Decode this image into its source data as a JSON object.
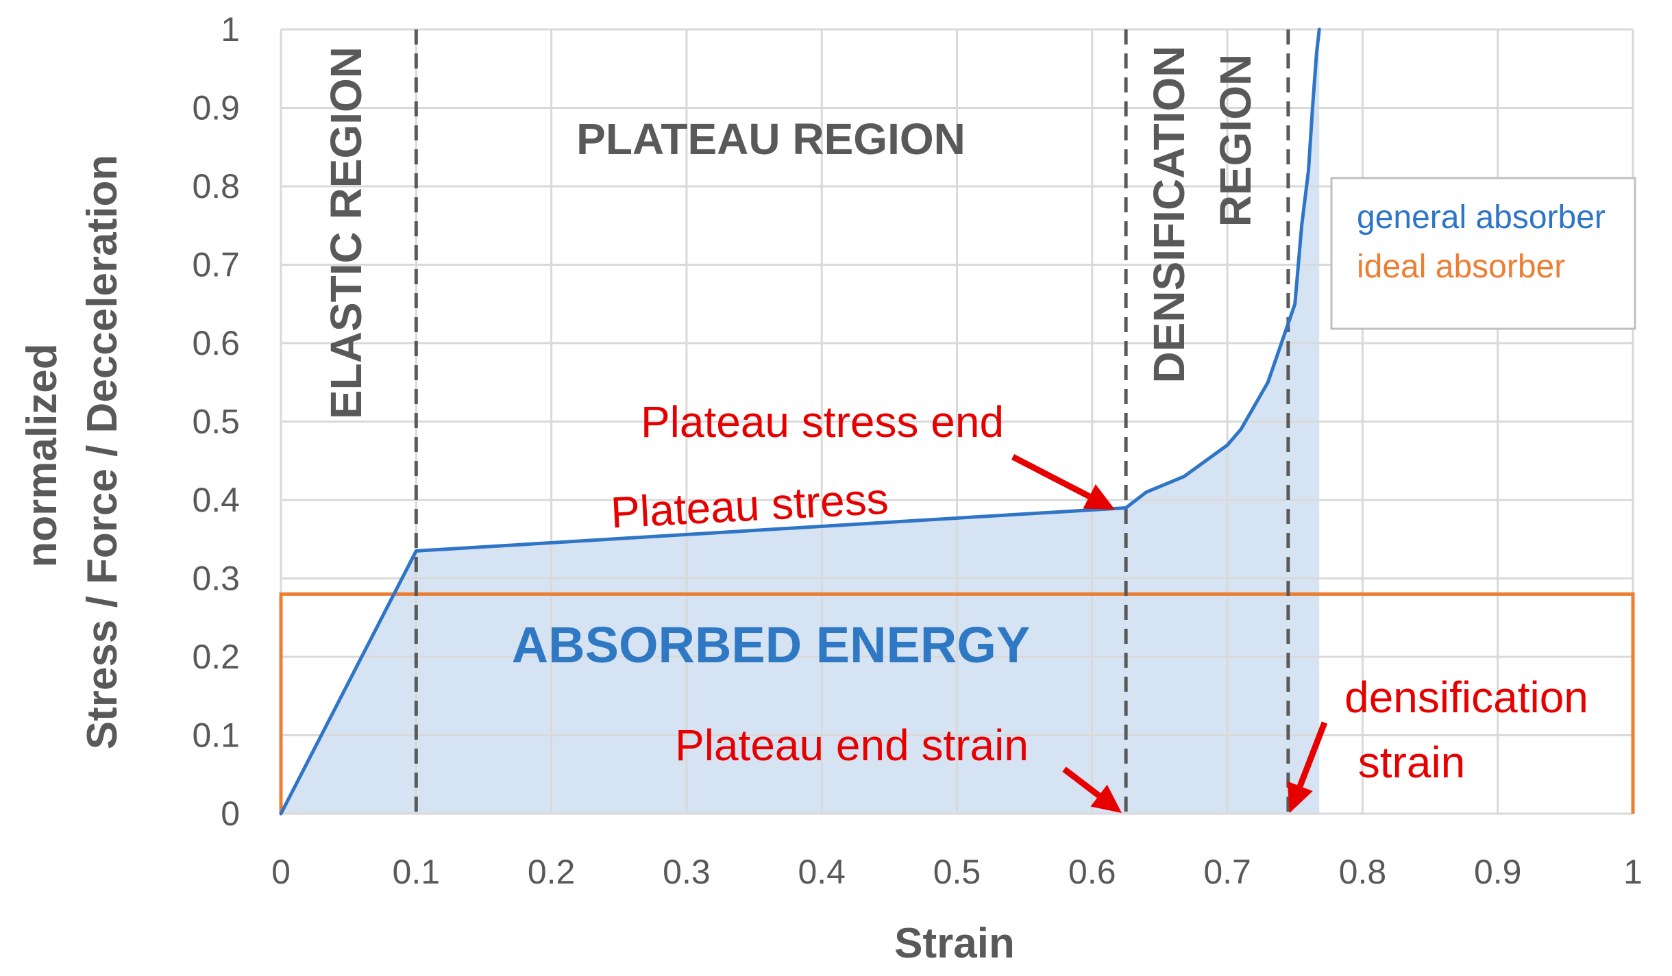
{
  "chart_data": {
    "type": "line",
    "title": "",
    "xlabel": "Strain",
    "ylabel_line1": "normalized",
    "ylabel_line2": "Stress / Force / Decceleration",
    "xlim": [
      0,
      1
    ],
    "ylim": [
      0,
      1
    ],
    "grid": true,
    "x_ticks": [
      0,
      0.1,
      0.2,
      0.3,
      0.4,
      0.5,
      0.6,
      0.7,
      0.8,
      0.9,
      1
    ],
    "x_tick_labels": [
      "0",
      "0.1",
      "0.2",
      "0.3",
      "0.4",
      "0.5",
      "0.6",
      "0.7",
      "0.8",
      "0.9",
      "1"
    ],
    "y_ticks": [
      0,
      0.1,
      0.2,
      0.3,
      0.4,
      0.5,
      0.6,
      0.7,
      0.8,
      0.9,
      1
    ],
    "y_tick_labels": [
      "0",
      "0.1",
      "0.2",
      "0.3",
      "0.4",
      "0.5",
      "0.6",
      "0.7",
      "0.8",
      "0.9",
      "1"
    ],
    "series": [
      {
        "name": "general absorber",
        "color": "#2E75C8",
        "fill": "#D6E3F3",
        "x": [
          0,
          0.1,
          0.625,
          0.64,
          0.668,
          0.7,
          0.71,
          0.72,
          0.73,
          0.74,
          0.75,
          0.755,
          0.76,
          0.763,
          0.766,
          0.768
        ],
        "y": [
          0,
          0.335,
          0.39,
          0.41,
          0.43,
          0.47,
          0.49,
          0.52,
          0.55,
          0.6,
          0.65,
          0.75,
          0.82,
          0.9,
          0.97,
          1.0
        ]
      },
      {
        "name": "ideal absorber",
        "color": "#ED7D31",
        "x": [
          0,
          0,
          1,
          1
        ],
        "y": [
          0,
          0.28,
          0.28,
          0
        ]
      }
    ],
    "vlines": [
      0.1,
      0.625,
      0.745
    ],
    "region_labels": {
      "elastic": "ELASTIC  REGION",
      "plateau": "PLATEAU REGION",
      "densification_1": "DENSIFICATION",
      "densification_2": "REGION"
    },
    "annotations": {
      "plateau_stress_end": "Plateau stress end",
      "plateau_stress": "Plateau stress",
      "absorbed_energy": "ABSORBED ENERGY",
      "plateau_end_strain": "Plateau end strain",
      "densification_strain_1": "densification",
      "densification_strain_2": "strain"
    },
    "legend": {
      "position": "right",
      "entries": [
        {
          "label": "general absorber",
          "color": "#2E75C8"
        },
        {
          "label": "ideal absorber",
          "color": "#ED7D31"
        }
      ]
    },
    "colors": {
      "annotation_red": "#E60000",
      "energy_text": "#2F78C4",
      "axis_text": "#595959",
      "grid": "#D9D9D9",
      "dash": "#595959"
    }
  }
}
